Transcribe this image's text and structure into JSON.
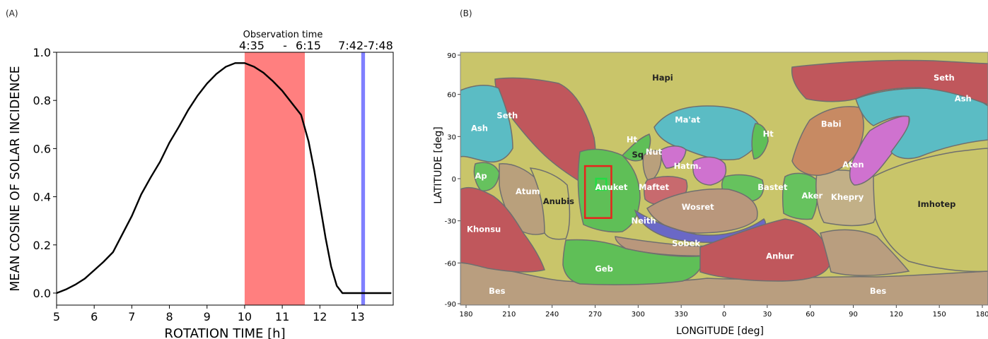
{
  "panel_a_tag": "(A)",
  "panel_b_tag": "(B)",
  "chart_data": [
    {
      "type": "line",
      "xlabel": "ROTATION TIME [h]",
      "ylabel": "MEAN COSINE OF SOLAR INCIDENCE",
      "xlim": [
        5,
        13.95
      ],
      "ylim": [
        -0.05,
        1.0
      ],
      "xticks": [
        5,
        6,
        7,
        8,
        9,
        10,
        11,
        12,
        13
      ],
      "yticks": [
        0.0,
        0.2,
        0.4,
        0.6,
        0.8,
        1.0
      ],
      "ytick_labels": [
        "0.0",
        "0.2",
        "0.4",
        "0.6",
        "0.8",
        "1.0"
      ],
      "grid": false,
      "series_color": "#000000",
      "x": [
        5.0,
        5.25,
        5.5,
        5.75,
        6.0,
        6.25,
        6.5,
        6.75,
        7.0,
        7.25,
        7.5,
        7.75,
        8.0,
        8.25,
        8.5,
        8.75,
        9.0,
        9.25,
        9.5,
        9.75,
        10.0,
        10.25,
        10.5,
        10.75,
        11.0,
        11.25,
        11.5,
        11.7,
        11.85,
        12.0,
        12.15,
        12.3,
        12.45,
        12.6,
        12.75,
        13.0,
        13.25,
        13.5,
        13.9
      ],
      "y": [
        0.0,
        0.015,
        0.035,
        0.06,
        0.095,
        0.13,
        0.17,
        0.245,
        0.32,
        0.41,
        0.48,
        0.545,
        0.625,
        0.69,
        0.76,
        0.82,
        0.87,
        0.91,
        0.94,
        0.955,
        0.955,
        0.94,
        0.915,
        0.88,
        0.84,
        0.79,
        0.74,
        0.63,
        0.51,
        0.37,
        0.23,
        0.11,
        0.03,
        0.0,
        0.0,
        0.0,
        0.0,
        0.0,
        0.0
      ],
      "spans": [
        {
          "from": 10.0,
          "to": 11.6,
          "color": "#ff7f7f",
          "label": "Observation time"
        },
        {
          "from": 13.1,
          "to": 13.2,
          "color": "#7f7fff",
          "label": ""
        }
      ],
      "top_annotations": {
        "caption": "Observation time",
        "start": "4:35",
        "dash": "-",
        "end": "6:15",
        "second": "7:42-7:48"
      }
    },
    {
      "type": "map",
      "xlabel": "LONGITUDE [deg]",
      "ylabel": "LATITUDE [deg]",
      "xtick_labels": [
        "180",
        "210",
        "240",
        "270",
        "300",
        "330",
        "0",
        "30",
        "60",
        "90",
        "120",
        "150",
        "180"
      ],
      "yticks": [
        90,
        60,
        30,
        0,
        -30,
        -60,
        -90
      ],
      "ytick_labels": [
        "90",
        "60",
        "30",
        "0",
        "-30",
        "-60",
        "-90"
      ],
      "xlim": [
        180,
        540
      ],
      "ylim": [
        -90,
        90
      ],
      "highlight_boxes": [
        {
          "name": "red-box",
          "color": "#e8231c",
          "lon": [
            265,
            283
          ],
          "lat": [
            -28,
            9
          ]
        },
        {
          "name": "green-box",
          "color": "#22dd44",
          "lon": [
            272.5,
            279.5
          ],
          "lat": [
            -8,
            0
          ]
        }
      ],
      "region_colors": {
        "hapi": "#c9c56a",
        "seth": "#c0575c",
        "ash": "#5bbcc4",
        "maat": "#5bbcc4",
        "anubis": "#c9c56a",
        "atum": "#b9a07c",
        "khonsu": "#c0575c",
        "ap": "#66c25e",
        "anuket": "#5fbf57",
        "geb": "#5fbf57",
        "bes": "#b99e7f",
        "sobek": "#b9977c",
        "wosret": "#b9977c",
        "anhur": "#c0575c",
        "nut": "#cf72cf",
        "hatmehit": "#cf72cf",
        "aten": "#cf72cf",
        "maftet": "#c86a6e",
        "bastet": "#66c25e",
        "aker": "#66c25e",
        "khepry": "#c2b087",
        "imhotep": "#c9c56a",
        "babi": "#c78a63",
        "neith": "#6a68c6",
        "hathor": "#5fbf57",
        "serqet": "#b9a07c",
        "pole": "#b99e7f"
      },
      "regions": [
        {
          "key": "hapi",
          "name": "Hapi",
          "lon": 318,
          "lat": 70
        },
        {
          "key": "seth",
          "name": "Seth",
          "lon": 212,
          "lat": 43
        },
        {
          "key": "seth2",
          "name": "Seth",
          "lon": 150,
          "lat": 70
        },
        {
          "key": "ash",
          "name": "Ash",
          "lon": 193,
          "lat": 34
        },
        {
          "key": "ash2",
          "name": "Ash",
          "lon": 163,
          "lat": 55
        },
        {
          "key": "maat",
          "name": "Ma'at",
          "lon": 335,
          "lat": 40
        },
        {
          "key": "ht1",
          "name": "Ht",
          "lon": 297,
          "lat": 26
        },
        {
          "key": "ht2",
          "name": "Ht",
          "lon": 30,
          "lat": 30
        },
        {
          "key": "sq",
          "name": "Sq",
          "lon": 301,
          "lat": 15
        },
        {
          "key": "nut",
          "name": "Nut",
          "lon": 312,
          "lat": 17
        },
        {
          "key": "hatm",
          "name": "Hatm.",
          "lon": 335,
          "lat": 7
        },
        {
          "key": "babi",
          "name": "Babi",
          "lon": 73,
          "lat": 37
        },
        {
          "key": "aten",
          "name": "Aten",
          "lon": 88,
          "lat": 8
        },
        {
          "key": "ap",
          "name": "Ap",
          "lon": 194,
          "lat": 0
        },
        {
          "key": "anuket",
          "name": "Anuket",
          "lon": 283,
          "lat": -8
        },
        {
          "key": "maftet",
          "name": "Maftet",
          "lon": 312,
          "lat": -8
        },
        {
          "key": "bastet",
          "name": "Bastet",
          "lon": 33,
          "lat": -8
        },
        {
          "key": "anubis",
          "name": "Anubis",
          "lon": 247,
          "lat": -18
        },
        {
          "key": "atum",
          "name": "Atum",
          "lon": 226,
          "lat": -11
        },
        {
          "key": "wosret",
          "name": "Wosret",
          "lon": 342,
          "lat": -22
        },
        {
          "key": "aker",
          "name": "Aker",
          "lon": 60,
          "lat": -14
        },
        {
          "key": "khepry",
          "name": "Khepry",
          "lon": 84,
          "lat": -15
        },
        {
          "key": "imhotep",
          "name": "Imhotep",
          "lon": 145,
          "lat": -20
        },
        {
          "key": "khonsu",
          "name": "Khonsu",
          "lon": 196,
          "lat": -38
        },
        {
          "key": "neith",
          "name": "Neith",
          "lon": 305,
          "lat": -32
        },
        {
          "key": "sobek",
          "name": "Sobek",
          "lon": 334,
          "lat": -48
        },
        {
          "key": "anhur",
          "name": "Anhur",
          "lon": 38,
          "lat": -57
        },
        {
          "key": "geb",
          "name": "Geb",
          "lon": 278,
          "lat": -66
        },
        {
          "key": "bes1",
          "name": "Bes",
          "lon": 205,
          "lat": -82
        },
        {
          "key": "bes2",
          "name": "Bes",
          "lon": 105,
          "lat": -82
        }
      ]
    }
  ]
}
